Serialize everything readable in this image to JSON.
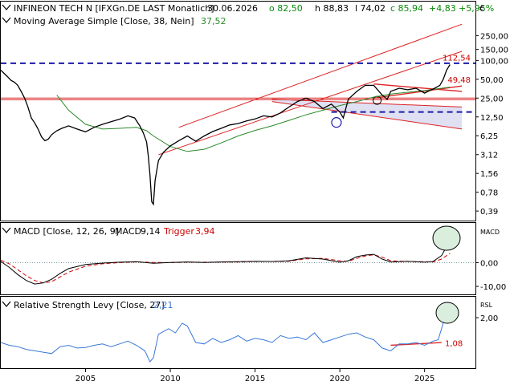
{
  "colors": {
    "price": "#000000",
    "sma": "#2a8a2a",
    "macd": "#000000",
    "trigger": "#cc0000",
    "rsl": "#3a78d8",
    "channel": "#dd2222",
    "dashed": "#1a1aaa",
    "shade": "#d8d8f0",
    "positive": "#0a8a0a",
    "negative": "#cc0000",
    "circle_fill": "#d9eedc"
  },
  "chart_data": [
    {
      "type": "line",
      "title": "INFINEON TECH N [IFXGn.DE LAST Monatlich]",
      "header": {
        "date": "30.06.2026",
        "open_label": "o 82,50",
        "high_label": "h 88,83",
        "low_label": "l 74,02",
        "close_label": "c 85,94",
        "change_abs": "+4,83",
        "change_pct": "+5,95%"
      },
      "indicator_label": "Moving Average Simple [Close, 38, Nein]",
      "indicator_value": "37,52",
      "currency": "€",
      "y_scale": "log",
      "ylim": [
        0.3,
        320
      ],
      "y_ticks": [
        250,
        150,
        100,
        50,
        25,
        12.5,
        6.25,
        3.12,
        1.56,
        0.78,
        0.39
      ],
      "y_tick_labels": [
        "250,00",
        "150,00",
        "100,00",
        "50,00",
        "25,00",
        "12,50",
        "6,25",
        "3,12",
        "1,56",
        "0,78",
        "0,39"
      ],
      "xlim": [
        2000,
        2028
      ],
      "x_ticks": [
        2005,
        2010,
        2015,
        2020,
        2025
      ],
      "series": [
        {
          "key": "price",
          "x": [
            2000.0,
            2000.2,
            2000.4,
            2000.6,
            2000.8,
            2001.0,
            2001.2,
            2001.4,
            2001.6,
            2001.8,
            2002.0,
            2002.2,
            2002.4,
            2002.6,
            2002.8,
            2003.0,
            2003.3,
            2003.6,
            2004.0,
            2004.5,
            2005.0,
            2005.5,
            2006.0,
            2006.5,
            2007.0,
            2007.5,
            2007.9,
            2008.2,
            2008.4,
            2008.6,
            2008.7,
            2008.8,
            2008.9,
            2009.0,
            2009.1,
            2009.3,
            2009.6,
            2010.0,
            2010.5,
            2011.0,
            2011.5,
            2012.0,
            2012.5,
            2013.0,
            2013.5,
            2014.0,
            2014.5,
            2015.0,
            2015.5,
            2016.0,
            2016.5,
            2017.0,
            2017.5,
            2018.0,
            2018.5,
            2019.0,
            2019.5,
            2020.0,
            2020.2,
            2020.5,
            2021.0,
            2021.5,
            2022.0,
            2022.5,
            2022.8,
            2023.0,
            2023.5,
            2024.0,
            2024.5,
            2025.0,
            2025.3,
            2025.6,
            2025.9,
            2026.1,
            2026.3,
            2026.5
          ],
          "values": [
            70,
            62,
            55,
            48,
            45,
            40,
            32,
            25,
            18,
            12,
            10,
            8,
            6,
            5.2,
            5.5,
            6.5,
            7.5,
            8.2,
            9,
            8,
            7.2,
            8.5,
            9.5,
            10.5,
            11.5,
            13,
            12,
            9,
            7,
            5,
            3,
            1.5,
            0.55,
            0.5,
            1.2,
            2.5,
            3.4,
            4.3,
            5.2,
            6.2,
            5.1,
            6.2,
            7.3,
            8.2,
            9.3,
            9.8,
            10.8,
            11.6,
            13,
            12.5,
            14.5,
            18,
            22,
            25,
            22,
            17,
            20,
            15,
            12,
            24,
            32,
            40,
            40,
            28,
            24,
            32,
            36,
            34,
            36,
            30,
            33,
            36,
            40,
            50,
            70,
            86
          ]
        },
        {
          "key": "sma",
          "x": [
            2003.3,
            2004.0,
            2005.0,
            2006.0,
            2007.0,
            2008.0,
            2008.6,
            2009.0,
            2010.0,
            2011.0,
            2012.0,
            2013.0,
            2014.0,
            2015.0,
            2016.0,
            2017.0,
            2018.0,
            2019.0,
            2020.0,
            2021.0,
            2022.0,
            2023.0,
            2024.0,
            2025.0,
            2026.5
          ],
          "values": [
            28,
            16,
            9.5,
            8,
            8.2,
            8.5,
            7.5,
            6.2,
            4.2,
            3.5,
            3.8,
            4.8,
            6.2,
            7.6,
            9,
            11,
            13.5,
            16,
            19,
            22,
            26,
            29,
            31,
            33,
            37.52
          ]
        }
      ],
      "annotations": [
        {
          "label": "112,54",
          "value": 112.54
        },
        {
          "label": "49,48",
          "value": 49.48
        }
      ],
      "lines": {
        "resistance_dashed": 90,
        "support_dashed": 15,
        "horizontal_red_1": 25,
        "horizontal_red_2": 23.5,
        "channel_lower": {
          "x": [
            2009.3,
            2027.2
          ],
          "y": [
            3.1,
            140
          ]
        },
        "channel_upper": {
          "x": [
            2010.5,
            2027.2
          ],
          "y": [
            8.5,
            380
          ]
        },
        "wedge_upper": {
          "x": [
            2022.0,
            2027.2
          ],
          "y": [
            42,
            32
          ]
        },
        "wedge_lower": {
          "x": [
            2022.0,
            2027.2
          ],
          "y": [
            25,
            39
          ]
        },
        "down_channel_top": {
          "x": [
            2016.0,
            2027.2
          ],
          "y": [
            24,
            18
          ]
        },
        "down_channel_bottom": {
          "x": [
            2016.0,
            2027.2
          ],
          "y": [
            22,
            8
          ]
        }
      }
    },
    {
      "type": "line",
      "title": "MACD [Close, 12, 26, 9]",
      "macd_label": "MACD",
      "macd_value": "9,14",
      "trigger_label": "Trigger",
      "trigger_value": "3,94",
      "side_label": "MACD",
      "ylim": [
        -13,
        16
      ],
      "y_ticks": [
        0,
        -10
      ],
      "y_tick_labels": [
        "0,00",
        "-10,00"
      ],
      "zero_line": 0,
      "series": [
        {
          "key": "macd",
          "x": [
            2000.0,
            2000.5,
            2001.0,
            2001.5,
            2002.0,
            2002.5,
            2003.0,
            2003.5,
            2004.0,
            2005.0,
            2006.0,
            2007.0,
            2008.0,
            2009.0,
            2010.0,
            2011.0,
            2012.0,
            2013.0,
            2014.0,
            2015.0,
            2016.0,
            2017.0,
            2018.0,
            2019.0,
            2020.0,
            2020.5,
            2021.0,
            2021.5,
            2022.0,
            2022.5,
            2023.0,
            2024.0,
            2025.0,
            2025.5,
            2026.0,
            2026.5
          ],
          "values": [
            0.5,
            -2,
            -5,
            -7.5,
            -9,
            -8.5,
            -7,
            -4.5,
            -2.5,
            -0.8,
            -0.2,
            0.2,
            0.4,
            -0.3,
            0.1,
            0.3,
            0.1,
            0.3,
            0.4,
            0.6,
            0.5,
            0.8,
            2,
            1.5,
            0.2,
            0.8,
            2.5,
            3.2,
            3.5,
            1.5,
            0.3,
            0.6,
            0.2,
            0.5,
            3,
            9.14
          ]
        },
        {
          "key": "trigger",
          "x": [
            2000.0,
            2000.5,
            2001.0,
            2001.5,
            2002.0,
            2002.5,
            2003.0,
            2003.5,
            2004.0,
            2005.0,
            2006.0,
            2007.0,
            2008.0,
            2009.0,
            2010.0,
            2011.0,
            2012.0,
            2013.0,
            2014.0,
            2015.0,
            2016.0,
            2017.0,
            2018.0,
            2019.0,
            2020.0,
            2020.5,
            2021.0,
            2021.5,
            2022.0,
            2022.5,
            2023.0,
            2024.0,
            2025.0,
            2025.5,
            2026.0,
            2026.5
          ],
          "values": [
            1,
            -0.5,
            -3,
            -5.5,
            -7.5,
            -8.5,
            -8,
            -6,
            -4,
            -1.5,
            -0.5,
            0,
            0.3,
            0.1,
            0,
            0.2,
            0.2,
            0.2,
            0.3,
            0.5,
            0.5,
            0.6,
            1.6,
            1.8,
            0.8,
            0.6,
            1.8,
            2.8,
            3.3,
            2.3,
            0.8,
            0.5,
            0.4,
            0.3,
            1.5,
            3.94
          ]
        }
      ]
    },
    {
      "type": "line",
      "title": "Relative Strength Levy [Close, 27]",
      "value": "2,21",
      "side_label": "RSL",
      "ylim": [
        0.2,
        2.7
      ],
      "y_ticks": [
        2
      ],
      "y_tick_labels": [
        "2,00"
      ],
      "annotation": {
        "label": "1,08",
        "value": 1.08
      },
      "trend_line": {
        "x": [
          2023.0,
          2026.0
        ],
        "y": [
          1.0,
          1.1
        ]
      },
      "series": [
        {
          "key": "rsl",
          "x": [
            2000.0,
            2000.5,
            2001.0,
            2001.5,
            2002.0,
            2002.5,
            2003.0,
            2003.5,
            2004.0,
            2004.5,
            2005.0,
            2005.5,
            2006.0,
            2006.5,
            2007.0,
            2007.5,
            2008.0,
            2008.5,
            2008.8,
            2009.0,
            2009.3,
            2009.6,
            2009.9,
            2010.3,
            2010.7,
            2011.0,
            2011.5,
            2012.0,
            2012.5,
            2013.0,
            2013.5,
            2014.0,
            2014.5,
            2015.0,
            2015.5,
            2016.0,
            2016.5,
            2017.0,
            2017.5,
            2018.0,
            2018.5,
            2019.0,
            2019.5,
            2020.0,
            2020.5,
            2021.0,
            2021.5,
            2022.0,
            2022.5,
            2023.0,
            2023.5,
            2024.0,
            2024.5,
            2025.0,
            2025.5,
            2025.8,
            2026.0,
            2026.2,
            2026.5
          ],
          "values": [
            1.1,
            1.0,
            0.95,
            0.85,
            0.8,
            0.75,
            0.7,
            0.95,
            1.0,
            0.9,
            0.92,
            1.0,
            1.05,
            0.95,
            1.05,
            1.15,
            1.0,
            0.8,
            0.4,
            0.55,
            1.4,
            1.5,
            1.6,
            1.45,
            1.8,
            1.7,
            1.1,
            1.05,
            1.25,
            1.1,
            1.2,
            1.35,
            1.15,
            1.25,
            1.2,
            1.1,
            1.35,
            1.25,
            1.3,
            1.2,
            1.45,
            1.1,
            1.2,
            1.3,
            1.4,
            1.45,
            1.3,
            1.2,
            0.9,
            0.8,
            1.05,
            1.05,
            1.1,
            1.0,
            1.15,
            1.2,
            1.6,
            2.05,
            2.21
          ]
        }
      ]
    }
  ]
}
